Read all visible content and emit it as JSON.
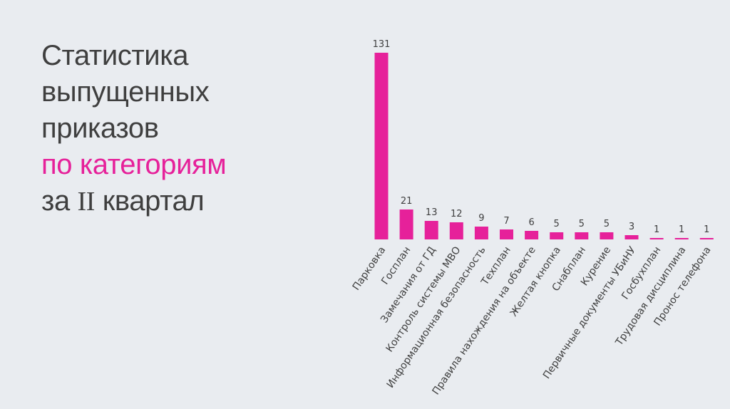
{
  "title": {
    "line1": "Статистика",
    "line2": "выпущенных",
    "line3": "приказов",
    "line4_accent": "по категориям",
    "line5_prefix": "за",
    "line5_roman": "II",
    "line5_suffix": "квартал"
  },
  "colors": {
    "background": "#e9ecf0",
    "bar": "#e6219a",
    "text": "#3f3f3f",
    "accent": "#e6219a"
  },
  "chart_data": {
    "type": "bar",
    "categories": [
      "Парковка",
      "Госплан",
      "Замечания от ГД",
      "Контроль системы МВО",
      "Информационная безопасность",
      "Техплан",
      "Правила нахождения на объекте",
      "Желтая кнопка",
      "Снабплан",
      "Курение",
      "Первичные документы УБиНУ",
      "Госбухплан",
      "Трудовая дисциплина",
      "Пронос телефона"
    ],
    "values": [
      131,
      21,
      13,
      12,
      9,
      7,
      6,
      5,
      5,
      5,
      3,
      1,
      1,
      1
    ],
    "ylim": [
      0,
      131
    ],
    "grid": false,
    "legend": "none",
    "data_labels": true
  }
}
